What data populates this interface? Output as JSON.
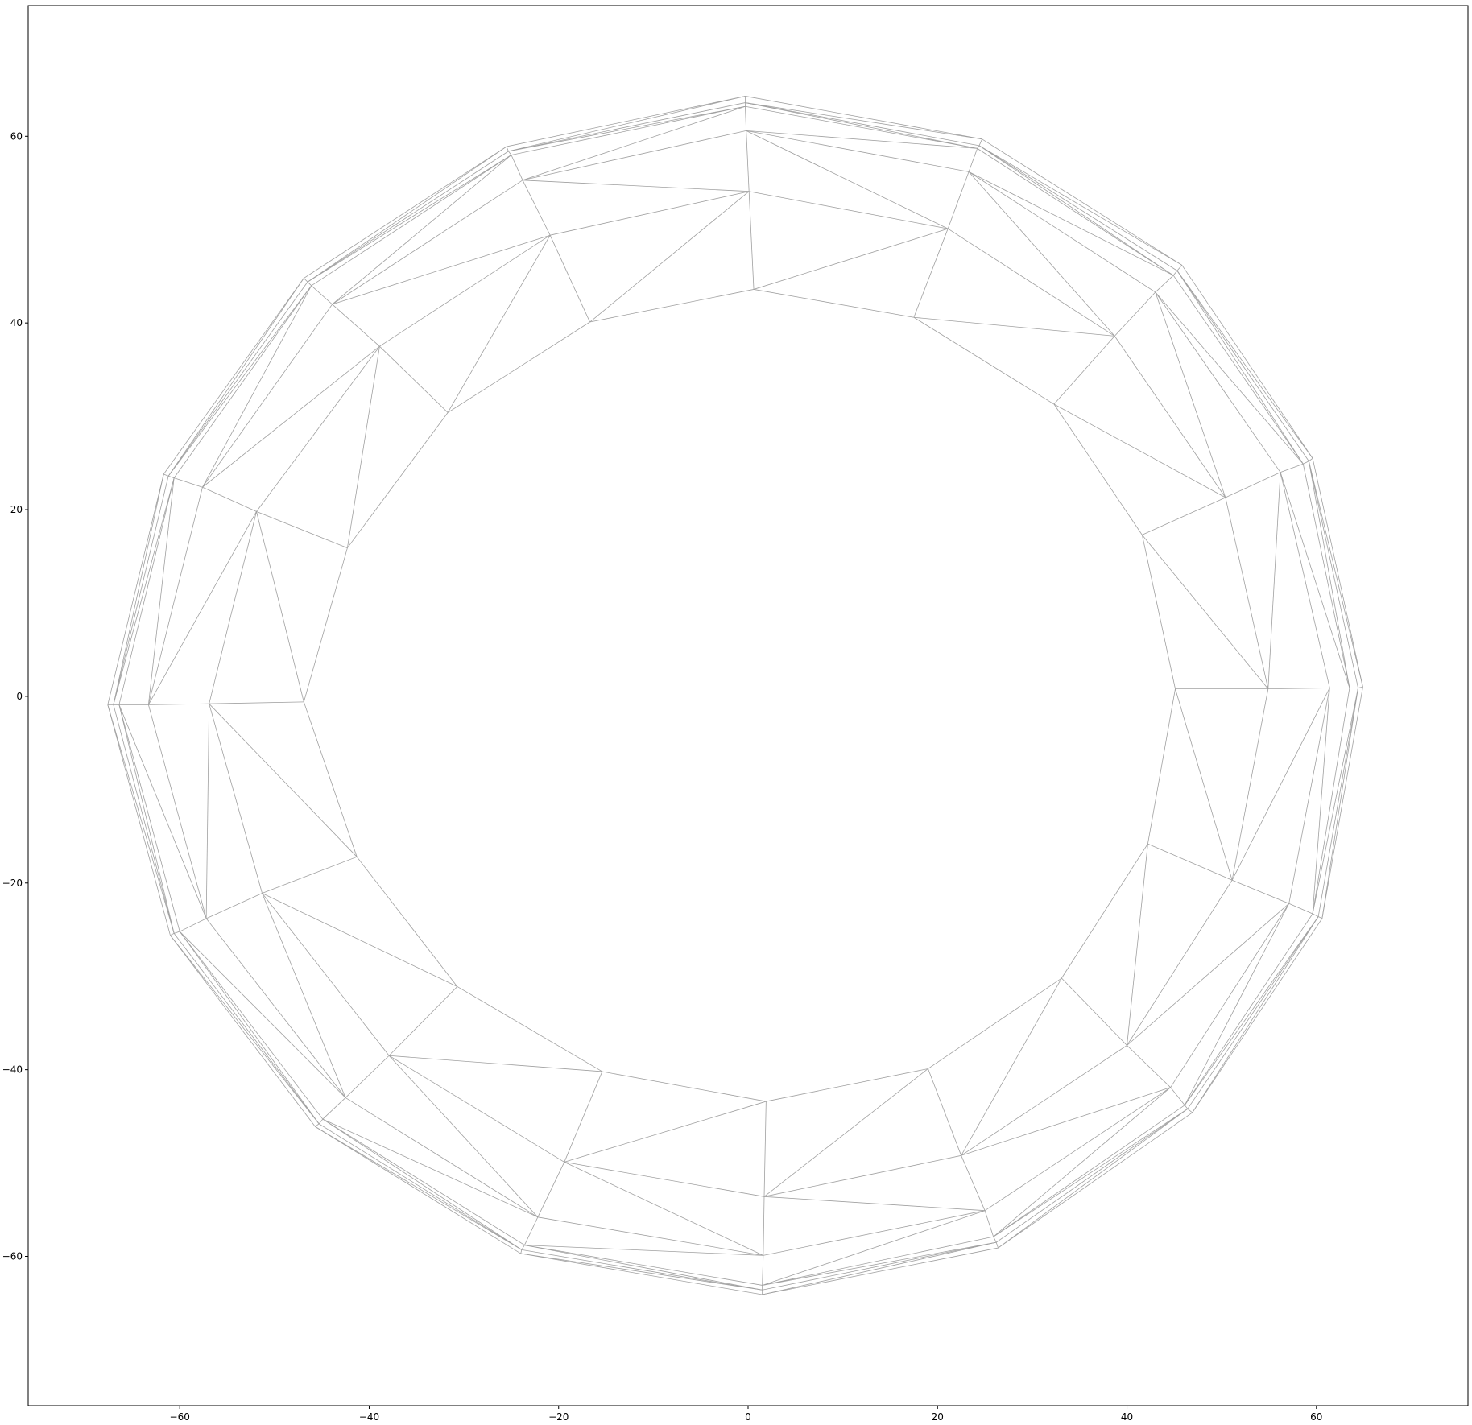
{
  "chart_data": {
    "type": "mesh",
    "xlim": [
      -76,
      76
    ],
    "ylim": [
      -76,
      74
    ],
    "xticks": [
      -60,
      -40,
      -20,
      0,
      20,
      40,
      60
    ],
    "yticks": [
      -60,
      -40,
      -20,
      0,
      20,
      40,
      60
    ],
    "xtick_labels": [
      "−60",
      "−40",
      "−20",
      "0",
      "20",
      "40",
      "60"
    ],
    "ytick_labels": [
      "−60",
      "−40",
      "−20",
      "0",
      "20",
      "40",
      "60"
    ],
    "grid": false,
    "edge_color": "#a0a0a0",
    "rings": [
      {
        "name": "r0",
        "points": [
          [
            0.6,
            43.6
          ],
          [
            17.5,
            40.6
          ],
          [
            32.3,
            31.3
          ],
          [
            41.6,
            17.3
          ],
          [
            45.1,
            0.8
          ],
          [
            42.2,
            -15.8
          ],
          [
            33.1,
            -30.2
          ],
          [
            19.0,
            -39.9
          ],
          [
            1.9,
            -43.4
          ],
          [
            -15.4,
            -40.2
          ],
          [
            -30.7,
            -31.1
          ],
          [
            -41.3,
            -17.2
          ],
          [
            -46.9,
            -0.6
          ],
          [
            -42.3,
            15.9
          ],
          [
            -31.7,
            30.4
          ],
          [
            -16.7,
            40.1
          ]
        ]
      },
      {
        "name": "r1",
        "points": [
          [
            0.1,
            54.1
          ],
          [
            21.1,
            50.1
          ],
          [
            38.7,
            38.6
          ],
          [
            50.4,
            21.3
          ],
          [
            54.9,
            0.8
          ],
          [
            51.1,
            -19.7
          ],
          [
            40.0,
            -37.4
          ],
          [
            22.5,
            -49.2
          ],
          [
            1.7,
            -53.6
          ],
          [
            -19.4,
            -49.9
          ],
          [
            -37.9,
            -38.5
          ],
          [
            -51.3,
            -21.1
          ],
          [
            -56.9,
            -0.8
          ],
          [
            -51.9,
            19.8
          ],
          [
            -38.9,
            37.5
          ],
          [
            -20.9,
            49.4
          ]
        ]
      },
      {
        "name": "r2",
        "points": [
          [
            -0.2,
            60.6
          ],
          [
            23.3,
            56.2
          ],
          [
            43.0,
            43.3
          ],
          [
            56.2,
            24.0
          ],
          [
            61.4,
            0.9
          ],
          [
            57.1,
            -22.2
          ],
          [
            44.6,
            -41.9
          ],
          [
            25.0,
            -55.1
          ],
          [
            1.6,
            -59.9
          ],
          [
            -22.2,
            -55.8
          ],
          [
            -42.5,
            -43.0
          ],
          [
            -57.2,
            -23.8
          ],
          [
            -63.3,
            -0.9
          ],
          [
            -57.6,
            22.4
          ],
          [
            -43.9,
            42.0
          ],
          [
            -23.8,
            55.3
          ]
        ]
      },
      {
        "name": "r3",
        "points": [
          [
            -0.3,
            63.2
          ],
          [
            24.2,
            58.7
          ],
          [
            44.9,
            45.1
          ],
          [
            58.6,
            24.9
          ],
          [
            63.5,
            0.9
          ],
          [
            59.6,
            -23.3
          ],
          [
            46.1,
            -43.8
          ],
          [
            25.9,
            -57.9
          ],
          [
            1.5,
            -63.1
          ],
          [
            -23.6,
            -58.8
          ],
          [
            -44.9,
            -45.3
          ],
          [
            -60.0,
            -25.2
          ],
          [
            -66.4,
            -0.9
          ],
          [
            -60.6,
            23.4
          ],
          [
            -46.1,
            44.0
          ],
          [
            -25.0,
            58.0
          ]
        ]
      },
      {
        "name": "r4",
        "points": [
          [
            -0.3,
            63.6
          ],
          [
            24.4,
            59.0
          ],
          [
            45.3,
            45.6
          ],
          [
            59.2,
            25.2
          ],
          [
            64.4,
            0.9
          ],
          [
            60.2,
            -23.6
          ],
          [
            46.4,
            -44.2
          ],
          [
            26.2,
            -58.5
          ],
          [
            1.5,
            -63.6
          ],
          [
            -23.9,
            -59.3
          ],
          [
            -45.3,
            -45.8
          ],
          [
            -60.6,
            -25.4
          ],
          [
            -67.0,
            -0.9
          ],
          [
            -61.2,
            23.6
          ],
          [
            -46.5,
            44.4
          ],
          [
            -25.3,
            58.4
          ]
        ]
      },
      {
        "name": "r5",
        "points": [
          [
            -0.3,
            64.3
          ],
          [
            24.7,
            59.7
          ],
          [
            45.8,
            46.2
          ],
          [
            59.6,
            25.5
          ],
          [
            64.9,
            1.0
          ],
          [
            60.6,
            -23.8
          ],
          [
            46.9,
            -44.6
          ],
          [
            26.4,
            -59.1
          ],
          [
            1.5,
            -64.1
          ],
          [
            -24.0,
            -59.7
          ],
          [
            -45.7,
            -46.1
          ],
          [
            -61.0,
            -25.6
          ],
          [
            -67.6,
            -0.9
          ],
          [
            -61.7,
            23.8
          ],
          [
            -46.9,
            44.8
          ],
          [
            -25.5,
            58.9
          ]
        ]
      }
    ]
  }
}
